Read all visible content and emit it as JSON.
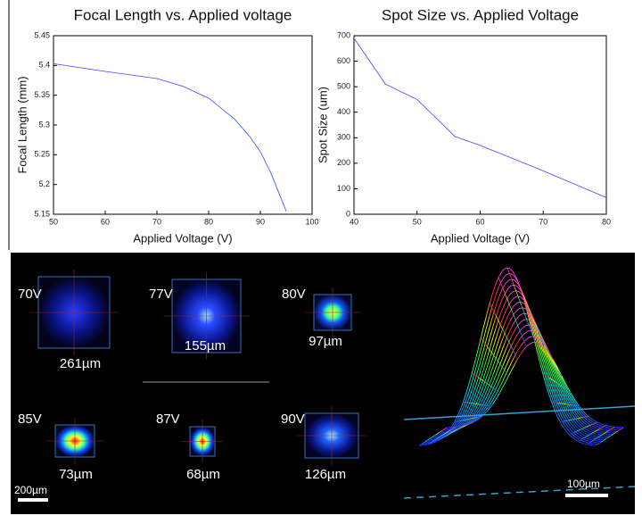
{
  "chart_data": [
    {
      "type": "line",
      "title": "Focal Length vs. Applied voltage",
      "x_label": "Applied Voltage (V)",
      "y_label": "Focal Length (mm)",
      "x": [
        50,
        60,
        70,
        75,
        80,
        85,
        88,
        90,
        92,
        95
      ],
      "values": [
        5.403,
        5.39,
        5.378,
        5.365,
        5.345,
        5.31,
        5.28,
        5.255,
        5.22,
        5.155
      ],
      "color": "#3b4bff",
      "xlim": [
        50,
        100
      ],
      "xticks": [
        50,
        60,
        70,
        80,
        90,
        100
      ],
      "ylim": [
        5.15,
        5.45
      ],
      "yticks": [
        5.15,
        5.2,
        5.25,
        5.3,
        5.35,
        5.4,
        5.45
      ]
    },
    {
      "type": "line",
      "title": "Spot Size vs. Applied Voltage",
      "x_label": "Applied Voltage (V)",
      "y_label": "Spot Size (um)",
      "x": [
        40,
        45,
        50,
        56,
        60,
        70,
        80
      ],
      "values": [
        690,
        510,
        450,
        305,
        270,
        170,
        65
      ],
      "color": "#3b4bff",
      "xlim": [
        40,
        80
      ],
      "xticks": [
        40,
        50,
        60,
        70,
        80
      ],
      "ylim": [
        0,
        700
      ],
      "yticks": [
        0,
        100,
        200,
        300,
        400,
        500,
        600,
        700
      ]
    }
  ],
  "image_panel": {
    "spots": [
      {
        "voltage": "70V",
        "size": "261µm"
      },
      {
        "voltage": "77V",
        "size": "155µm"
      },
      {
        "voltage": "80V",
        "size": "97µm"
      },
      {
        "voltage": "85V",
        "size": "73µm"
      },
      {
        "voltage": "87V",
        "size": "68µm"
      },
      {
        "voltage": "90V",
        "size": "126µm"
      }
    ],
    "scale_bars": [
      "200µm",
      "100µm"
    ]
  }
}
